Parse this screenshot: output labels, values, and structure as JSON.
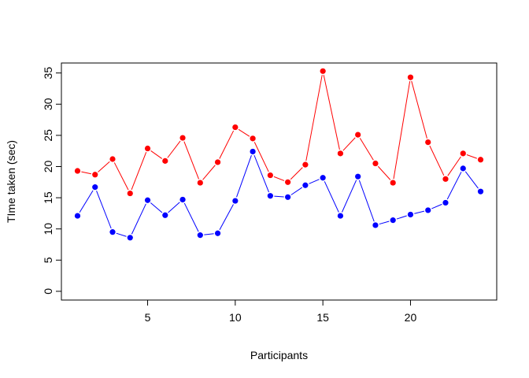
{
  "chart_data": {
    "type": "line",
    "title": "",
    "xlabel": "Participants",
    "ylabel": "TIme taken (sec)",
    "xlim": [
      0.08,
      24.92
    ],
    "ylim": [
      -1.4,
      36.6
    ],
    "x_ticks": [
      5,
      10,
      15,
      20
    ],
    "y_ticks": [
      0,
      5,
      10,
      15,
      20,
      25,
      30,
      35
    ],
    "grid": false,
    "legend": "none",
    "x": [
      1,
      2,
      3,
      4,
      5,
      6,
      7,
      8,
      9,
      10,
      11,
      12,
      13,
      14,
      15,
      16,
      17,
      18,
      19,
      20,
      21,
      22,
      23,
      24
    ],
    "series": [
      {
        "color": "#ff0000",
        "values": [
          19.3,
          18.7,
          21.2,
          15.7,
          22.9,
          20.9,
          24.6,
          17.4,
          20.7,
          26.3,
          24.5,
          18.6,
          17.5,
          20.3,
          35.3,
          22.1,
          25.1,
          20.5,
          17.4,
          34.3,
          23.9,
          18.0,
          22.1,
          21.1
        ]
      },
      {
        "color": "#0000ff",
        "values": [
          12.1,
          16.7,
          9.5,
          8.6,
          14.6,
          12.2,
          14.7,
          9.0,
          9.3,
          14.5,
          22.4,
          15.3,
          15.1,
          17.0,
          18.2,
          12.1,
          18.4,
          10.6,
          11.4,
          12.3,
          13.0,
          14.2,
          19.7,
          16.0
        ]
      }
    ]
  }
}
